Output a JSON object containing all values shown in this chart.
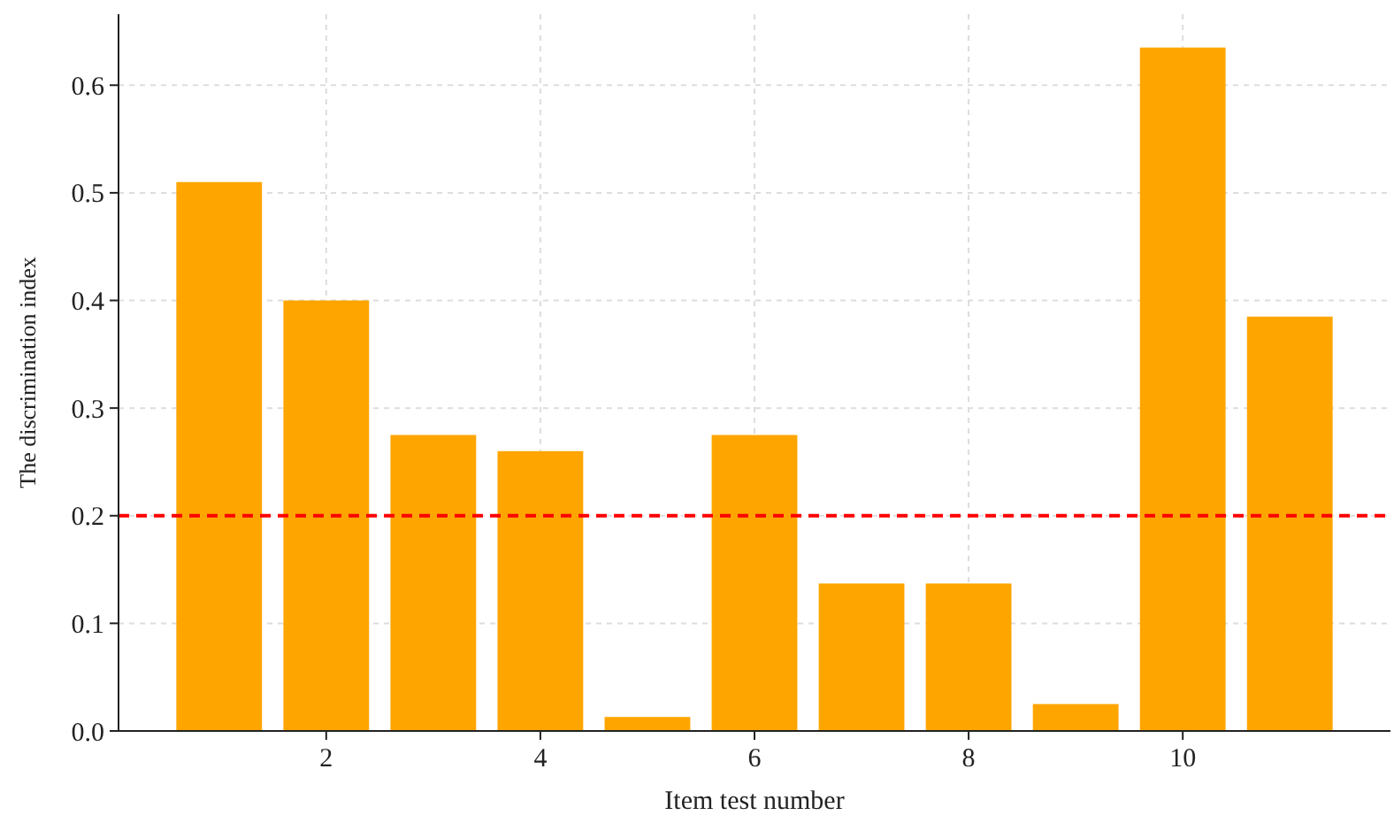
{
  "chart_data": {
    "type": "bar",
    "xlabel": "Item test number",
    "ylabel": "The discrimination index",
    "x": [
      1,
      2,
      3,
      4,
      5,
      6,
      7,
      8,
      9,
      10,
      11
    ],
    "values": [
      0.51,
      0.4,
      0.275,
      0.26,
      0.013,
      0.275,
      0.137,
      0.137,
      0.025,
      0.635,
      0.385
    ],
    "color": "#ffa500",
    "xlim": [
      0.06,
      11.94
    ],
    "xticks": [
      2,
      4,
      6,
      8,
      10
    ],
    "ylim": [
      0,
      0.666
    ],
    "yticks": [
      {
        "value": 0,
        "label": "0.0"
      },
      0.1,
      0.2,
      0.3,
      0.4,
      0.5,
      0.6
    ],
    "grid": true,
    "ref_lines": [
      {
        "axis": "y",
        "value": 0.2,
        "color": "#ff0000",
        "line_style": "dashed"
      }
    ]
  }
}
